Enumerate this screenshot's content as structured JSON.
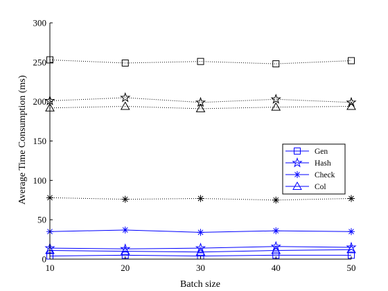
{
  "chart_data": {
    "type": "line",
    "xlabel": "Batch size",
    "ylabel": "Average Time Consumption (ms)",
    "x": [
      10,
      20,
      30,
      40,
      50
    ],
    "xlim": [
      10,
      50
    ],
    "ylim": [
      0,
      300
    ],
    "xticks": [
      10,
      20,
      30,
      40,
      50
    ],
    "yticks": [
      0,
      50,
      100,
      150,
      200,
      250,
      300
    ],
    "grid": false,
    "legend_position": "center-right",
    "legend": [
      "Gen",
      "Hash",
      "Check",
      "Col"
    ],
    "series": [
      {
        "group": "blue-solid",
        "marker": "square",
        "values": [
          4,
          5,
          4,
          5,
          5
        ]
      },
      {
        "group": "blue-solid",
        "marker": "star",
        "values": [
          14,
          13,
          14,
          16,
          15
        ]
      },
      {
        "group": "blue-solid",
        "marker": "asterisk",
        "values": [
          35,
          37,
          34,
          36,
          35
        ]
      },
      {
        "group": "blue-solid",
        "marker": "triangle",
        "values": [
          11,
          10,
          9,
          11,
          12
        ]
      },
      {
        "group": "black-dotted",
        "marker": "square",
        "values": [
          253,
          249,
          251,
          248,
          252
        ]
      },
      {
        "group": "black-dotted",
        "marker": "star",
        "values": [
          201,
          205,
          199,
          203,
          199
        ]
      },
      {
        "group": "black-dotted",
        "marker": "asterisk",
        "values": [
          78,
          76,
          77,
          75,
          77
        ]
      },
      {
        "group": "black-dotted",
        "marker": "triangle",
        "values": [
          192,
          194,
          191,
          193,
          194
        ]
      }
    ],
    "colors": {
      "blue": "#0000ff",
      "black": "#000000"
    }
  }
}
